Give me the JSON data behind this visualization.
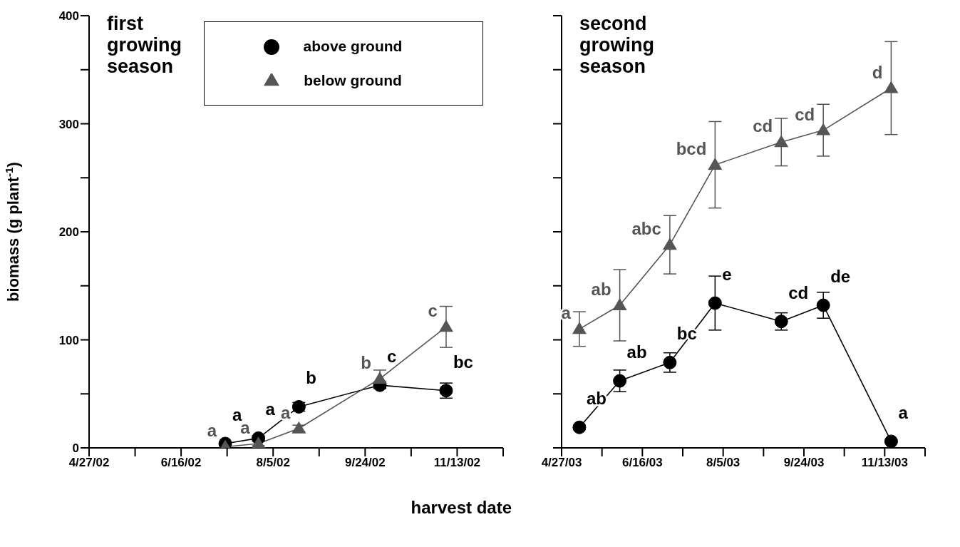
{
  "chart_data": [
    {
      "type": "line",
      "annotations": [
        "first growing season"
      ],
      "xlabel": "harvest date",
      "ylabel": "biomass (g plant$^{-1}$)",
      "legend": "top right",
      "line_style": "solid",
      "xlim": [
        "2002-04-27",
        "2002-12-08"
      ],
      "xticks": [
        {
          "value": "2002-04-27",
          "label": "4/27/02"
        },
        {
          "value": "2002-05-22",
          "label": null
        },
        {
          "value": "2002-06-16",
          "label": "6/16/02"
        },
        {
          "value": "2002-07-11",
          "label": null
        },
        {
          "value": "2002-08-05",
          "label": "8/5/02"
        },
        {
          "value": "2002-08-30",
          "label": null
        },
        {
          "value": "2002-09-24",
          "label": "9/24/02"
        },
        {
          "value": "2002-10-19",
          "label": null
        },
        {
          "value": "2002-11-13",
          "label": "11/13/02"
        },
        {
          "value": "2002-12-08",
          "label": null
        }
      ],
      "ylim": [
        0,
        400
      ],
      "yticks": [
        0,
        {
          "value": 50,
          "label": null
        },
        100,
        {
          "value": 150,
          "label": null
        },
        200,
        {
          "value": 250,
          "label": null
        },
        300,
        {
          "value": 350,
          "label": null
        },
        400
      ],
      "series": [
        {
          "name": "above ground",
          "color": "#000000",
          "marker": "circle",
          "x": [
            "2002-07-10",
            "2002-07-28",
            "2002-08-19",
            "2002-10-02",
            "2002-11-07"
          ],
          "values": [
            4,
            9,
            38,
            58,
            53
          ],
          "errors": [
            1,
            2,
            4,
            3,
            7
          ],
          "value_labels": [
            "a",
            "a",
            "b",
            "c",
            "bc"
          ]
        },
        {
          "name": "below ground",
          "color": "#555555",
          "marker": "triangle",
          "x": [
            "2002-07-10",
            "2002-07-28",
            "2002-08-19",
            "2002-10-02",
            "2002-11-07"
          ],
          "values": [
            1,
            4,
            18,
            64,
            112
          ],
          "errors": [
            1,
            2,
            3,
            8,
            19
          ],
          "value_labels": [
            "a",
            "a",
            "a",
            "b",
            "c"
          ]
        }
      ]
    },
    {
      "type": "line",
      "annotations": [
        "second growing season"
      ],
      "tick_labels": "x",
      "line_style": "solid",
      "xlim": [
        "2003-04-27",
        "2003-12-08"
      ],
      "xticks": [
        {
          "value": "2003-04-27",
          "label": "4/27/03"
        },
        {
          "value": "2003-05-22",
          "label": null
        },
        {
          "value": "2003-06-16",
          "label": "6/16/03"
        },
        {
          "value": "2003-07-11",
          "label": null
        },
        {
          "value": "2003-08-05",
          "label": "8/5/03"
        },
        {
          "value": "2003-08-30",
          "label": null
        },
        {
          "value": "2003-09-24",
          "label": "9/24/03"
        },
        {
          "value": "2003-10-19",
          "label": null
        },
        {
          "value": "2003-11-13",
          "label": "11/13/03"
        },
        {
          "value": "2003-12-08",
          "label": null
        }
      ],
      "ylim": [
        0,
        400
      ],
      "yticks": [
        {
          "value": 0,
          "label": null
        },
        {
          "value": 50,
          "label": null
        },
        {
          "value": 100,
          "label": null
        },
        {
          "value": 150,
          "label": null
        },
        {
          "value": 200,
          "label": null
        },
        {
          "value": 250,
          "label": null
        },
        {
          "value": 300,
          "label": null
        },
        {
          "value": 350,
          "label": null
        },
        {
          "value": 400,
          "label": null
        }
      ],
      "series": [
        {
          "color": "#000000",
          "marker": "circle",
          "x": [
            "2003-05-08",
            "2003-06-02",
            "2003-07-03",
            "2003-07-31",
            "2003-09-10",
            "2003-10-06",
            "2003-11-17"
          ],
          "values": [
            19,
            62,
            79,
            134,
            117,
            132,
            6
          ],
          "errors": [
            2,
            10,
            9,
            25,
            8,
            12,
            1
          ],
          "value_labels": [
            "ab",
            "ab",
            "bc",
            "e",
            "cd",
            "de",
            "a"
          ]
        },
        {
          "color": "#555555",
          "marker": "triangle",
          "x": [
            "2003-05-08",
            "2003-06-02",
            "2003-07-03",
            "2003-07-31",
            "2003-09-10",
            "2003-10-06",
            "2003-11-17"
          ],
          "values": [
            110,
            132,
            188,
            262,
            283,
            294,
            333
          ],
          "errors": [
            16,
            33,
            27,
            40,
            22,
            24,
            43
          ],
          "value_labels": [
            "a",
            "ab",
            "abc",
            "bcd",
            "cd",
            "cd",
            "d"
          ]
        }
      ]
    }
  ]
}
